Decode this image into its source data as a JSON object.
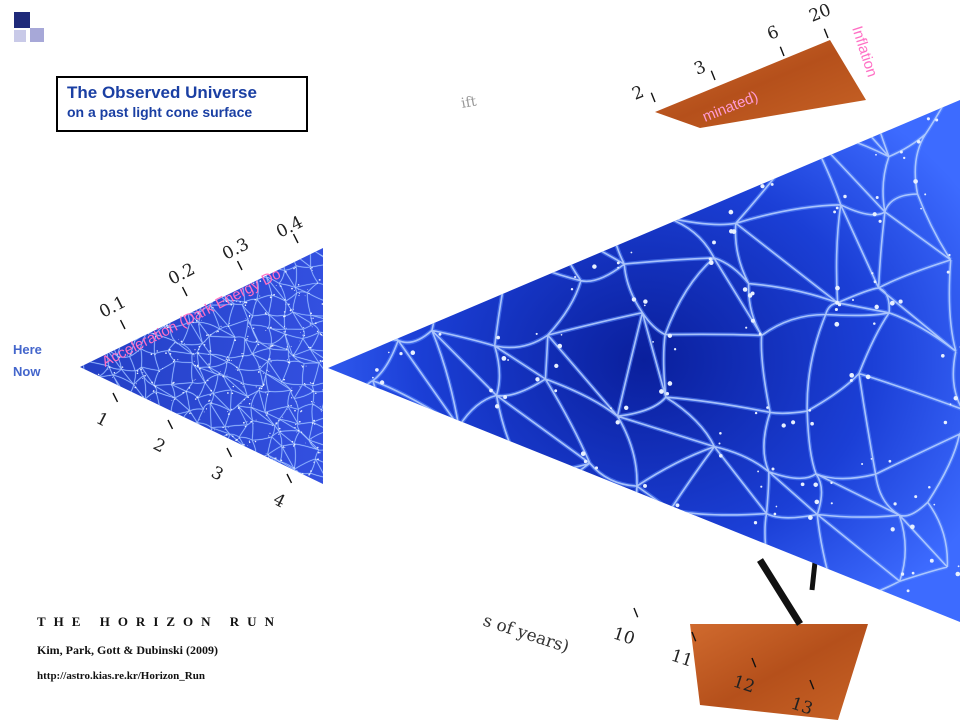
{
  "title_box": {
    "title": "The Observed Universe",
    "subtitle": "on a past light cone surface"
  },
  "observer": {
    "here": "Here",
    "now": "Now"
  },
  "redshift_ticks_upper": [
    "0.1",
    "0.2",
    "0.3",
    "0.4"
  ],
  "distance_ticks_lower": [
    "1",
    "2",
    "3",
    "4"
  ],
  "far_ticks_upper": [
    "2",
    "3",
    "6",
    "20"
  ],
  "far_ticks_lower": [
    "10",
    "11",
    "12",
    "13"
  ],
  "labels": {
    "acceleration": "Acceleration (Dark Energy Do",
    "inflation": "Inflation",
    "matter_dominated_fragment": "minated)",
    "years_fragment": "s of years)",
    "redshift_fragment": "ift"
  },
  "credits": {
    "project": "THE HORIZON RUN",
    "authors": "Kim, Park, Gott & Dubinski (2009)",
    "url": "http://astro.kias.re.kr/Horizon_Run"
  },
  "colors": {
    "title_text": "#1a3fa3",
    "label_pink": "#ff6fc4",
    "cosmic_blue": "#1a40d8",
    "cmb_orange": "#c0531d",
    "logo_navy": "#1f2a7a",
    "logo_lavender": "#a7a8d8"
  }
}
